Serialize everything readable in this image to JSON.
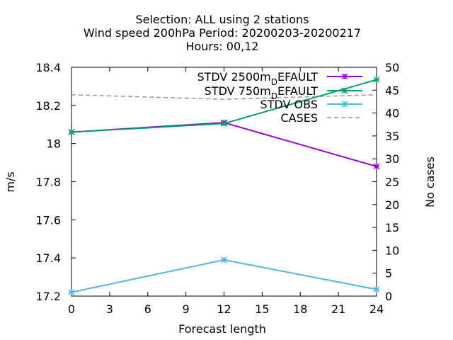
{
  "chart_data": {
    "type": "line",
    "title_lines": [
      "Selection: ALL using     2 stations",
      "Wind speed 200hPa   Period: 20200203-20200217",
      "Hours:  00,12"
    ],
    "xlabel": "Forecast length",
    "ylabel": "m/s",
    "y2label": "No cases",
    "xlim": [
      0,
      24
    ],
    "ylim": [
      17.2,
      18.4
    ],
    "y2lim": [
      0,
      50
    ],
    "xticks": [
      0,
      3,
      6,
      9,
      12,
      15,
      18,
      21,
      24
    ],
    "yticks": [
      17.2,
      17.4,
      17.6,
      17.8,
      18,
      18.2,
      18.4
    ],
    "y2ticks": [
      0,
      5,
      10,
      15,
      20,
      25,
      30,
      35,
      40,
      45,
      50
    ],
    "legend_position": "top-right",
    "grid": false,
    "x": [
      0,
      12,
      24
    ],
    "series": [
      {
        "name": "STDV 2500m_DEFAULT",
        "label_main": "STDV 2500m",
        "label_sub": "D",
        "label_rest": "EFAULT",
        "axis": "y",
        "color": "#9400d3",
        "values": [
          18.06,
          18.11,
          17.88
        ]
      },
      {
        "name": "STDV 750m_DEFAULT",
        "label_main": "STDV 750m",
        "label_sub": "D",
        "label_rest": "EFAULT",
        "axis": "y",
        "color": "#009e73",
        "values": [
          18.06,
          18.105,
          18.335
        ]
      },
      {
        "name": "STDV OBS",
        "label_main": "STDV OBS",
        "label_sub": "",
        "label_rest": "",
        "axis": "y",
        "color": "#56b4e9",
        "values": [
          17.22,
          17.39,
          17.235
        ]
      },
      {
        "name": "CASES",
        "label_main": "CASES",
        "label_sub": "",
        "label_rest": "",
        "axis": "y2",
        "color": "#999999",
        "dashed": true,
        "values": [
          44,
          43,
          44
        ]
      }
    ]
  }
}
